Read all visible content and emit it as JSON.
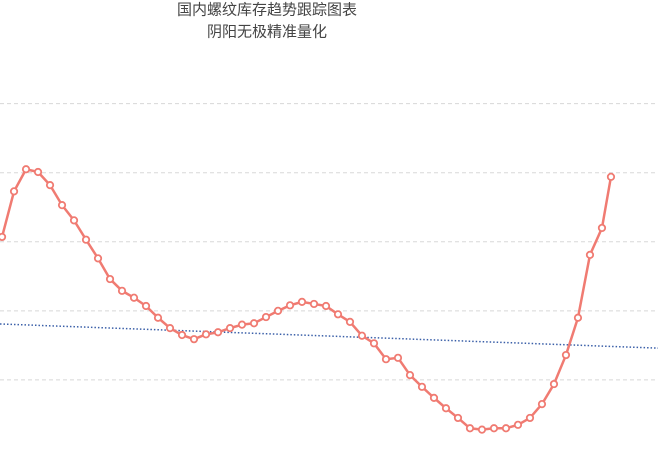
{
  "chart_data": {
    "type": "line",
    "title": "国内螺纹库存趋势跟踪图表",
    "subtitle": "阴阳无极精准量化",
    "x": [
      0,
      1,
      2,
      3,
      4,
      5,
      6,
      7,
      8,
      9,
      10,
      11,
      12,
      13,
      14,
      15,
      16,
      17,
      18,
      19,
      20,
      21,
      22,
      23,
      24,
      25,
      26,
      27,
      28,
      29,
      30,
      31,
      32,
      33,
      34,
      35,
      36,
      37,
      38,
      39,
      40,
      41,
      42,
      43,
      44,
      45,
      46,
      47,
      48,
      49,
      50,
      50.75
    ],
    "series": [
      {
        "color": "#f07b72",
        "values": [
          3.07,
          3.73,
          4.05,
          4.01,
          3.82,
          3.53,
          3.31,
          3.03,
          2.76,
          2.46,
          2.29,
          2.19,
          2.07,
          1.9,
          1.75,
          1.65,
          1.59,
          1.66,
          1.69,
          1.75,
          1.8,
          1.82,
          1.91,
          2.0,
          2.08,
          2.13,
          2.1,
          2.07,
          1.95,
          1.84,
          1.64,
          1.53,
          1.3,
          1.32,
          1.07,
          0.9,
          0.74,
          0.59,
          0.45,
          0.3,
          0.28,
          0.3,
          0.3,
          0.35,
          0.45,
          0.65,
          0.94,
          1.36,
          1.9,
          2.81,
          3.2,
          3.94
        ]
      }
    ],
    "trend": {
      "color": "#3a5fa8",
      "x": [
        -0.17,
        54.67
      ],
      "values": [
        1.81,
        1.46
      ]
    },
    "xlim": [
      -0.17,
      54.67
    ],
    "ylim": [
      0,
      6.5
    ],
    "grid_values": [
      1,
      2,
      3,
      4,
      5
    ],
    "grid": true
  }
}
